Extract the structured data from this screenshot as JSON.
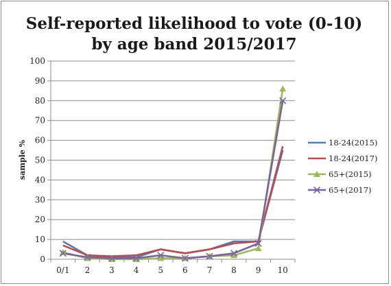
{
  "chart_data": {
    "type": "line",
    "title_line1": "Self-reported likelihood to vote (0-10)",
    "title_line2": "by age band 2015/2017",
    "xlabel": "",
    "ylabel": "sample %",
    "categories": [
      "0/1",
      "2",
      "3",
      "4",
      "5",
      "6",
      "7",
      "8",
      "9",
      "10"
    ],
    "ylim": [
      0,
      100
    ],
    "yticks": [
      0,
      10,
      20,
      30,
      40,
      50,
      60,
      70,
      80,
      90,
      100
    ],
    "grid": true,
    "legend_position": "right",
    "series": [
      {
        "name": "18-24(2015)",
        "color": "#4a7ebb",
        "marker": "none",
        "values": [
          9,
          2,
          1,
          1,
          5,
          3,
          5,
          9,
          9,
          55
        ]
      },
      {
        "name": "18-24(2017)",
        "color": "#be4b48",
        "marker": "none",
        "values": [
          7,
          2,
          1.5,
          2,
          5,
          3,
          5,
          8,
          9,
          57
        ]
      },
      {
        "name": "65+(2015)",
        "color": "#9bbb59",
        "marker": "triangle",
        "values": [
          3.5,
          0.5,
          0,
          0,
          0.5,
          0.5,
          1.5,
          2,
          5.5,
          86
        ]
      },
      {
        "name": "65+(2017)",
        "color": "#7d60a0",
        "marker": "x",
        "values": [
          3,
          1,
          0.5,
          0.5,
          2,
          0.5,
          1.5,
          3,
          8,
          80
        ]
      }
    ]
  }
}
